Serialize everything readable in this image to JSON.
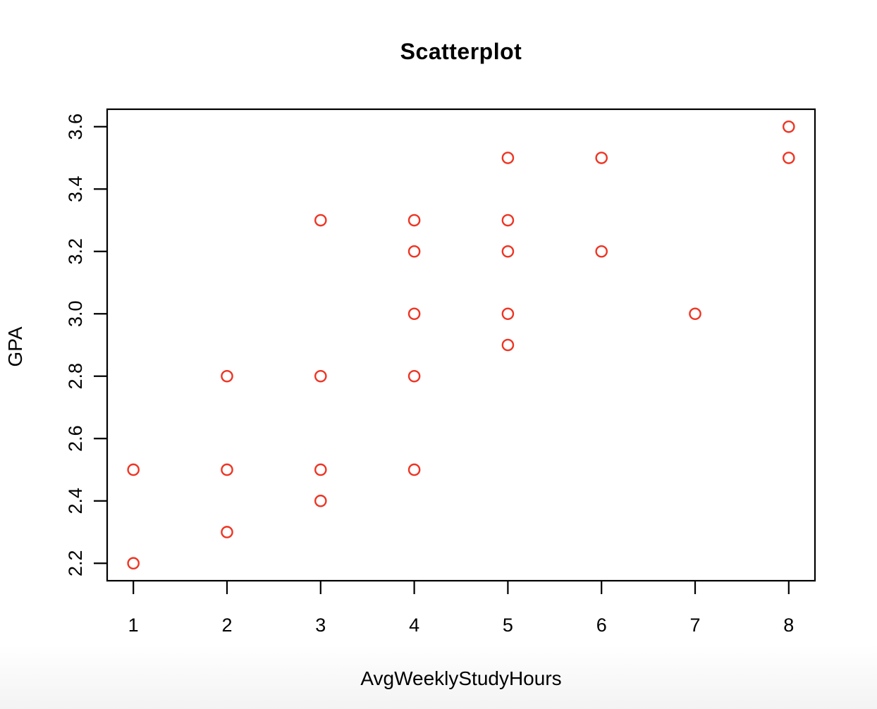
{
  "chart_data": {
    "type": "scatter",
    "title": "Scatterplot",
    "xlabel": "AvgWeeklyStudyHours",
    "ylabel": "GPA",
    "xlim": [
      0.72,
      8.28
    ],
    "ylim": [
      2.144,
      3.656
    ],
    "grid": false,
    "legend": "none",
    "point_style": "open-circle",
    "point_color": "#ee3524",
    "x_ticks": [
      {
        "v": 1,
        "label": "1"
      },
      {
        "v": 2,
        "label": "2"
      },
      {
        "v": 3,
        "label": "3"
      },
      {
        "v": 4,
        "label": "4"
      },
      {
        "v": 5,
        "label": "5"
      },
      {
        "v": 6,
        "label": "6"
      },
      {
        "v": 7,
        "label": "7"
      },
      {
        "v": 8,
        "label": "8"
      }
    ],
    "y_ticks": [
      {
        "v": 2.2,
        "label": "2.2"
      },
      {
        "v": 2.4,
        "label": "2.4"
      },
      {
        "v": 2.6,
        "label": "2.6"
      },
      {
        "v": 2.8,
        "label": "2.8"
      },
      {
        "v": 3.0,
        "label": "3.0"
      },
      {
        "v": 3.2,
        "label": "3.2"
      },
      {
        "v": 3.4,
        "label": "3.4"
      },
      {
        "v": 3.6,
        "label": "3.6"
      }
    ],
    "points": [
      {
        "x": 1,
        "y": 2.2
      },
      {
        "x": 1,
        "y": 2.5
      },
      {
        "x": 2,
        "y": 2.3
      },
      {
        "x": 2,
        "y": 2.5
      },
      {
        "x": 2,
        "y": 2.8
      },
      {
        "x": 3,
        "y": 2.4
      },
      {
        "x": 3,
        "y": 2.5
      },
      {
        "x": 3,
        "y": 2.8
      },
      {
        "x": 3,
        "y": 3.3
      },
      {
        "x": 4,
        "y": 2.5
      },
      {
        "x": 4,
        "y": 2.8
      },
      {
        "x": 4,
        "y": 3.0
      },
      {
        "x": 4,
        "y": 3.2
      },
      {
        "x": 4,
        "y": 3.3
      },
      {
        "x": 5,
        "y": 2.9
      },
      {
        "x": 5,
        "y": 3.0
      },
      {
        "x": 5,
        "y": 3.2
      },
      {
        "x": 5,
        "y": 3.3
      },
      {
        "x": 5,
        "y": 3.5
      },
      {
        "x": 6,
        "y": 3.2
      },
      {
        "x": 6,
        "y": 3.5
      },
      {
        "x": 7,
        "y": 3.0
      },
      {
        "x": 8,
        "y": 3.5
      },
      {
        "x": 8,
        "y": 3.6
      }
    ]
  }
}
